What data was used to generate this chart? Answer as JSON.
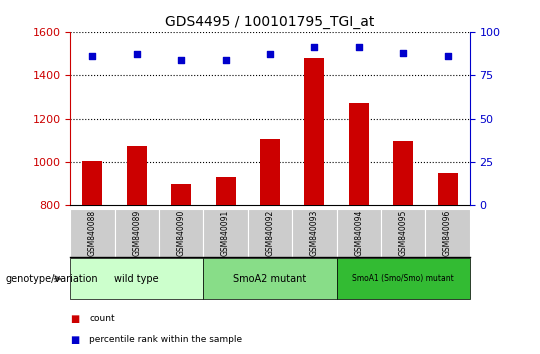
{
  "title": "GDS4495 / 100101795_TGI_at",
  "samples": [
    "GSM840088",
    "GSM840089",
    "GSM840090",
    "GSM840091",
    "GSM840092",
    "GSM840093",
    "GSM840094",
    "GSM840095",
    "GSM840096"
  ],
  "counts": [
    1005,
    1075,
    900,
    930,
    1105,
    1480,
    1270,
    1095,
    950
  ],
  "percentile_ranks": [
    86,
    87,
    84,
    84,
    87,
    91,
    91,
    88,
    86
  ],
  "ylim_left": [
    800,
    1600
  ],
  "ylim_right": [
    0,
    100
  ],
  "yticks_left": [
    800,
    1000,
    1200,
    1400,
    1600
  ],
  "yticks_right": [
    0,
    25,
    50,
    75,
    100
  ],
  "bar_color": "#cc0000",
  "dot_color": "#0000cc",
  "groups": [
    {
      "label": "wild type",
      "start": 0,
      "end": 3,
      "color": "#ccffcc"
    },
    {
      "label": "SmoA2 mutant",
      "start": 3,
      "end": 6,
      "color": "#88dd88"
    },
    {
      "label": "SmoA1 (Smo/Smo) mutant",
      "start": 6,
      "end": 9,
      "color": "#33bb33"
    }
  ],
  "left_axis_color": "#cc0000",
  "right_axis_color": "#0000cc",
  "xlabel_genotype": "genotype/variation",
  "background_color": "#ffffff",
  "tick_bg_color": "#cccccc",
  "legend_count_color": "#cc0000",
  "legend_dot_color": "#0000cc"
}
